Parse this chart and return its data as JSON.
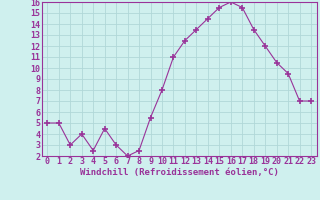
{
  "x": [
    0,
    1,
    2,
    3,
    4,
    5,
    6,
    7,
    8,
    9,
    10,
    11,
    12,
    13,
    14,
    15,
    16,
    17,
    18,
    19,
    20,
    21,
    22,
    23
  ],
  "y": [
    5.0,
    5.0,
    3.0,
    4.0,
    2.5,
    4.5,
    3.0,
    2.0,
    2.5,
    5.5,
    8.0,
    11.0,
    12.5,
    13.5,
    14.5,
    15.5,
    16.0,
    15.5,
    13.5,
    12.0,
    10.5,
    9.5,
    7.0,
    7.0
  ],
  "line_color": "#993399",
  "marker": "+",
  "marker_size": 5,
  "marker_linewidth": 1.2,
  "bg_color": "#cff0ee",
  "grid_color": "#b0d8d8",
  "xlabel": "Windchill (Refroidissement éolien,°C)",
  "xlabel_fontsize": 6.5,
  "tick_fontsize": 6.0,
  "ylim": [
    2,
    16
  ],
  "xlim": [
    -0.5,
    23.5
  ],
  "yticks": [
    2,
    3,
    4,
    5,
    6,
    7,
    8,
    9,
    10,
    11,
    12,
    13,
    14,
    15,
    16
  ],
  "xticks": [
    0,
    1,
    2,
    3,
    4,
    5,
    6,
    7,
    8,
    9,
    10,
    11,
    12,
    13,
    14,
    15,
    16,
    17,
    18,
    19,
    20,
    21,
    22,
    23
  ]
}
